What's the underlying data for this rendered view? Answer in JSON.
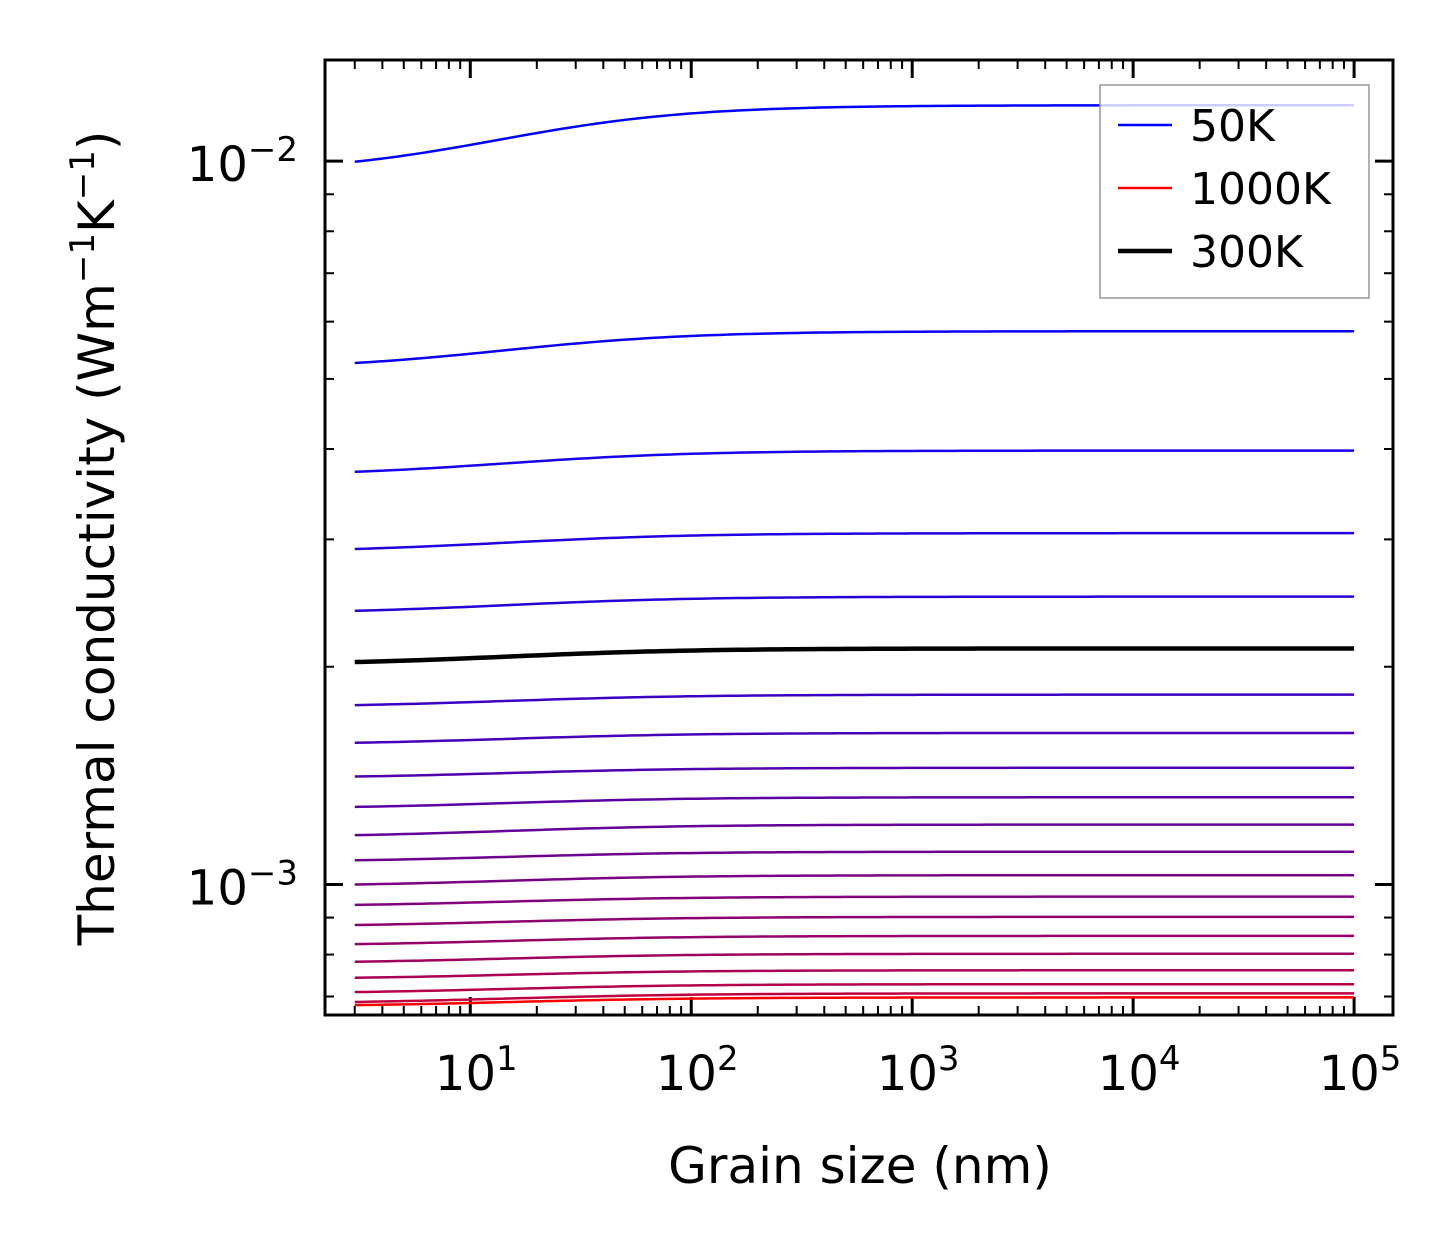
{
  "chart_data": {
    "type": "line",
    "xlabel": "Grain size (nm)",
    "ylabel": "Thermal conductivity (Wm",
    "ylabel_parts": {
      "pre": "Thermal conductivity (Wm",
      "exp1": "−1",
      "mid": "K",
      "exp2": "−1",
      "post": ")"
    },
    "xscale": "log",
    "yscale": "log",
    "xlim": [
      2.2,
      150000
    ],
    "ylim": [
      0.00066,
      0.0138
    ],
    "x_ticks": [
      {
        "value": 10,
        "base": "10",
        "exp": "1"
      },
      {
        "value": 100,
        "base": "10",
        "exp": "2"
      },
      {
        "value": 1000,
        "base": "10",
        "exp": "3"
      },
      {
        "value": 10000,
        "base": "10",
        "exp": "4"
      },
      {
        "value": 100000,
        "base": "10",
        "exp": "5"
      }
    ],
    "y_ticks": [
      {
        "value": 0.01,
        "base": "10",
        "exp": "−2"
      },
      {
        "value": 0.001,
        "base": "10",
        "exp": "−3"
      }
    ],
    "x_range": [
      3,
      100000
    ],
    "curve_shape": {
      "L0_nm": 15
    },
    "series": [
      {
        "name": "50K",
        "color": "#0000ff",
        "k_bulk": 0.01195,
        "k_start": 0.00998,
        "legend": true
      },
      {
        "name": "",
        "color": "#0a00f4",
        "k_bulk": 0.00582,
        "k_start": 0.00526,
        "legend": false
      },
      {
        "name": "",
        "color": "#1400ea",
        "k_bulk": 0.00398,
        "k_start": 0.00372,
        "legend": false
      },
      {
        "name": "",
        "color": "#1e00e0",
        "k_bulk": 0.00306,
        "k_start": 0.00291,
        "legend": false
      },
      {
        "name": "",
        "color": "#2800d6",
        "k_bulk": 0.0025,
        "k_start": 0.00239,
        "legend": false
      },
      {
        "name": "300K",
        "color": "#000000",
        "k_bulk": 0.00212,
        "k_start": 0.00203,
        "legend": true,
        "bold": true
      },
      {
        "name": "",
        "color": "#3c00c2",
        "k_bulk": 0.00183,
        "k_start": 0.00177,
        "legend": false
      },
      {
        "name": "",
        "color": "#4600b8",
        "k_bulk": 0.00162,
        "k_start": 0.00157,
        "legend": false
      },
      {
        "name": "",
        "color": "#5000ae",
        "k_bulk": 0.00145,
        "k_start": 0.00141,
        "legend": false
      },
      {
        "name": "",
        "color": "#5a00a4",
        "k_bulk": 0.00132,
        "k_start": 0.00128,
        "legend": false
      },
      {
        "name": "",
        "color": "#64009a",
        "k_bulk": 0.00121,
        "k_start": 0.00117,
        "legend": false
      },
      {
        "name": "",
        "color": "#6e0090",
        "k_bulk": 0.00111,
        "k_start": 0.00108,
        "legend": false
      },
      {
        "name": "",
        "color": "#780086",
        "k_bulk": 0.00103,
        "k_start": 0.001,
        "legend": false
      },
      {
        "name": "",
        "color": "#82007c",
        "k_bulk": 0.000962,
        "k_start": 0.000937,
        "legend": false
      },
      {
        "name": "",
        "color": "#8c0072",
        "k_bulk": 0.000902,
        "k_start": 0.000879,
        "legend": false
      },
      {
        "name": "",
        "color": "#960068",
        "k_bulk": 0.000849,
        "k_start": 0.000827,
        "legend": false
      },
      {
        "name": "",
        "color": "#a0005e",
        "k_bulk": 0.000802,
        "k_start": 0.000782,
        "legend": false
      },
      {
        "name": "",
        "color": "#aa0054",
        "k_bulk": 0.000761,
        "k_start": 0.000743,
        "legend": false
      },
      {
        "name": "",
        "color": "#b4004a",
        "k_bulk": 0.000728,
        "k_start": 0.00071,
        "legend": false
      },
      {
        "name": "",
        "color": "#be0040",
        "k_bulk": 0.000707,
        "k_start": 0.000688,
        "legend": false
      },
      {
        "name": "1000K",
        "color": "#ff0000",
        "k_bulk": 0.000698,
        "k_start": 0.000681,
        "legend": true
      }
    ],
    "legend": {
      "placement": "top-right",
      "order": [
        "50K",
        "1000K",
        "300K"
      ]
    }
  }
}
